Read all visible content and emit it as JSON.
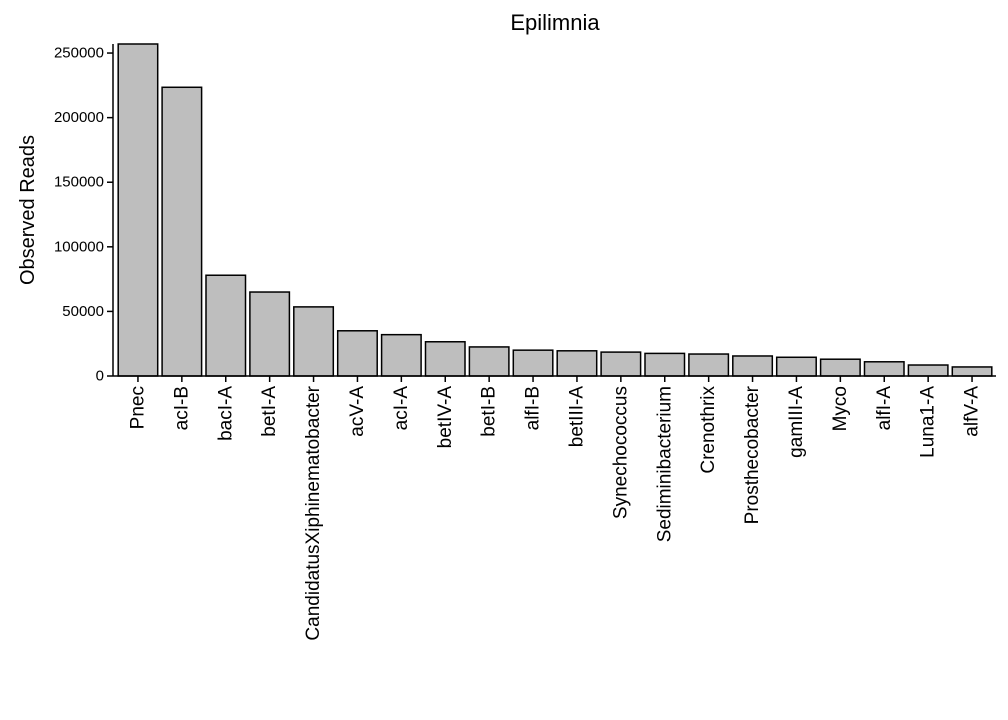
{
  "chart_data": {
    "type": "bar",
    "title": "Epilimnia",
    "xlabel": "",
    "ylabel": "Observed Reads",
    "ylim": [
      0,
      257000
    ],
    "yticks": [
      0,
      50000,
      100000,
      150000,
      200000,
      250000
    ],
    "ytick_labels": [
      "0",
      "50000",
      "100000",
      "150000",
      "200000",
      "250000"
    ],
    "categories": [
      "Pnec",
      "acI-B",
      "bacI-A",
      "betI-A",
      "CandidatusXiphinematobacter",
      "acV-A",
      "acI-A",
      "betIV-A",
      "betI-B",
      "alfI-B",
      "betIII-A",
      "Synechococcus",
      "Sediminibacterium",
      "Crenothrix",
      "Prosthecobacter",
      "gamIII-A",
      "Myco",
      "alfI-A",
      "Luna1-A",
      "alfV-A"
    ],
    "values": [
      257000,
      223500,
      78000,
      65000,
      53500,
      35000,
      32000,
      26500,
      22500,
      20000,
      19500,
      18500,
      17500,
      17000,
      15500,
      14500,
      13000,
      11000,
      8500,
      7000
    ],
    "bar_color": "#bebebe",
    "grid": false,
    "legend": "none"
  }
}
